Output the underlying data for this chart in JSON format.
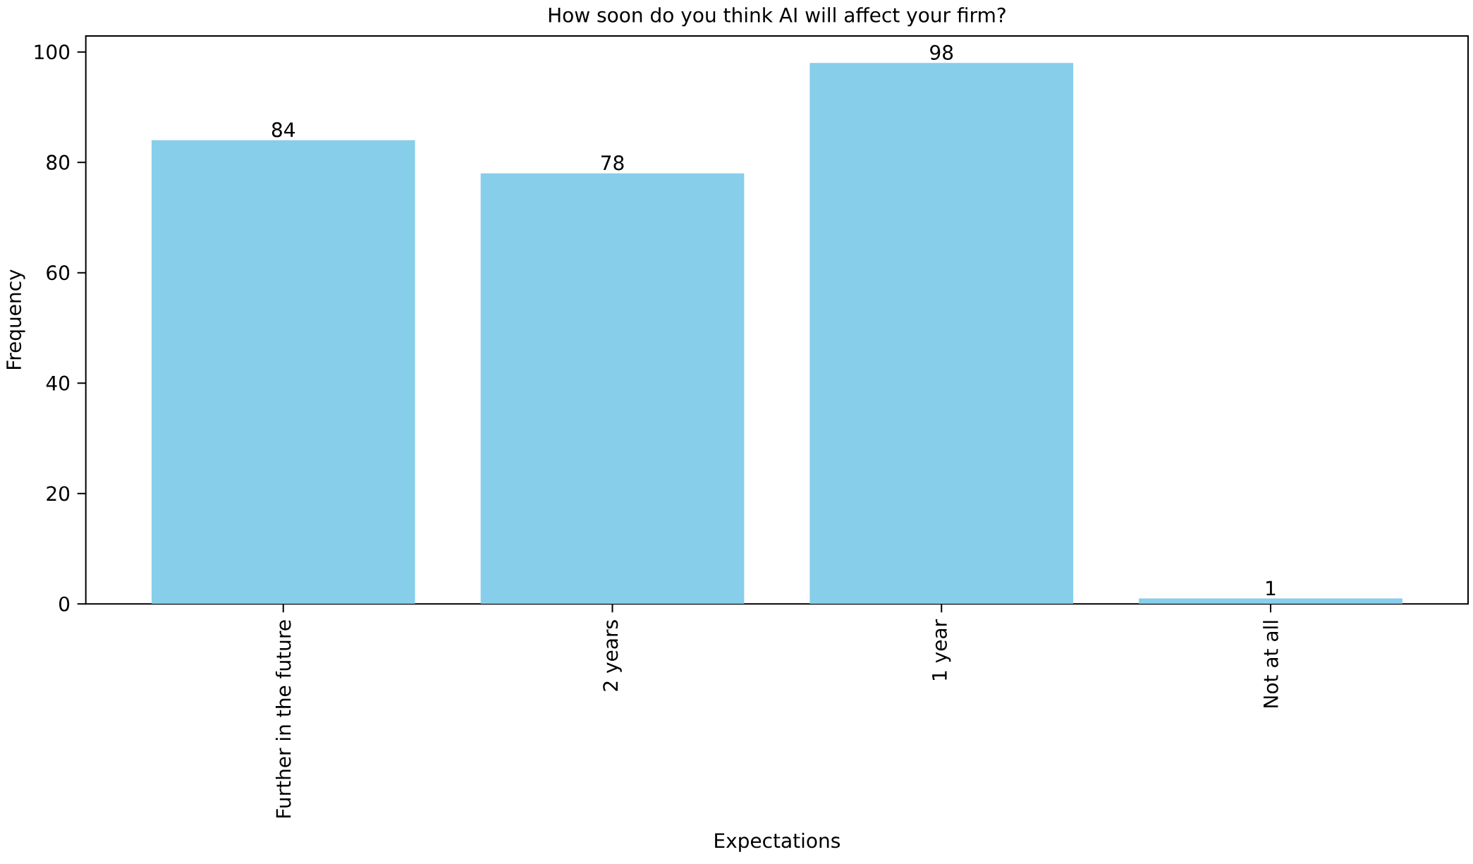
{
  "chart_data": {
    "type": "bar",
    "title": "How soon do you think AI will affect your firm?",
    "xlabel": "Expectations",
    "ylabel": "Frequency",
    "categories": [
      "Further in the future",
      "2 years",
      "1 year",
      "Not at all"
    ],
    "values": [
      84,
      78,
      98,
      1
    ],
    "color": "#87ceeb",
    "data_labels": true,
    "ylim": [
      0,
      102.9
    ],
    "yticks": [
      0,
      20,
      40,
      60,
      80,
      100
    ],
    "grid": false
  }
}
